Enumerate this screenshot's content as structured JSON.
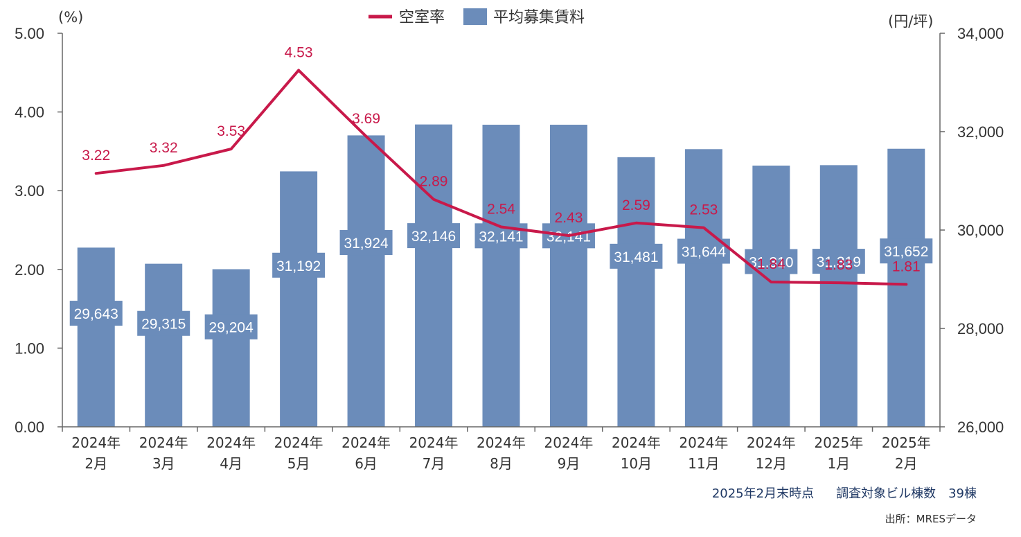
{
  "chart_data": {
    "type": "bar",
    "categories": [
      [
        "2024年",
        "2月"
      ],
      [
        "2024年",
        "3月"
      ],
      [
        "2024年",
        "4月"
      ],
      [
        "2024年",
        "5月"
      ],
      [
        "2024年",
        "6月"
      ],
      [
        "2024年",
        "7月"
      ],
      [
        "2024年",
        "8月"
      ],
      [
        "2024年",
        "9月"
      ],
      [
        "2024年",
        "10月"
      ],
      [
        "2024年",
        "11月"
      ],
      [
        "2024年",
        "12月"
      ],
      [
        "2025年",
        "1月"
      ],
      [
        "2025年",
        "2月"
      ]
    ],
    "series": [
      {
        "name": "空室率",
        "type": "line",
        "axis": "left",
        "color": "#c8194a",
        "values": [
          3.22,
          3.32,
          3.53,
          4.53,
          3.69,
          2.89,
          2.54,
          2.43,
          2.59,
          2.53,
          1.84,
          1.83,
          1.81
        ],
        "labels": [
          "3.22",
          "3.32",
          "3.53",
          "4.53",
          "3.69",
          "2.89",
          "2.54",
          "2.43",
          "2.59",
          "2.53",
          "1.84",
          "1.83",
          "1.81"
        ]
      },
      {
        "name": "平均募集賃料",
        "type": "bar",
        "axis": "right",
        "color": "#6b8cba",
        "values": [
          29643,
          29315,
          29204,
          31192,
          31924,
          32146,
          32141,
          32141,
          31481,
          31644,
          31310,
          31319,
          31652
        ],
        "labels": [
          "29,643",
          "29,315",
          "29,204",
          "31,192",
          "31,924",
          "32,146",
          "32,141",
          "32,141",
          "31,481",
          "31,644",
          "31,310",
          "31,319",
          "31,652"
        ]
      }
    ],
    "y_left": {
      "unit": "(%)",
      "ylim": [
        0,
        5
      ],
      "ticks": [
        "0.00",
        "1.00",
        "2.00",
        "3.00",
        "4.00",
        "5.00"
      ]
    },
    "y_right": {
      "unit": "(円/坪)",
      "ylim": [
        26000,
        34000
      ],
      "ticks": [
        "26,000",
        "28,000",
        "30,000",
        "32,000",
        "34,000"
      ]
    },
    "legend_position": "top-center",
    "grid": false
  },
  "notes": {
    "as_of": "2025年2月末時点",
    "buildings": "調査対象ビル棟数　39棟",
    "source": "出所：MRESデータ"
  }
}
